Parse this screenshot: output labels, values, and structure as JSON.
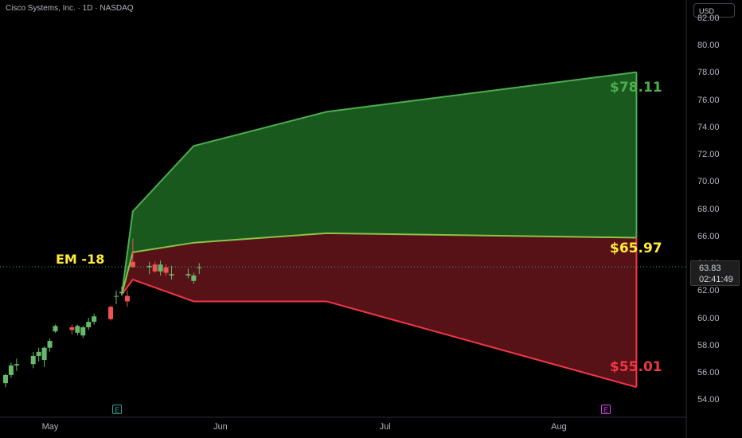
{
  "header": {
    "title": "Cisco Systems, Inc. · 1D · NASDAQ",
    "currency": "USD"
  },
  "price_tag": {
    "price": "63.83",
    "countdown": "02:41:49"
  },
  "labels": {
    "upper": "$78.11",
    "middle": "$65.97",
    "lower": "$55.01",
    "em": "EM -18"
  },
  "earnings_badges": [
    "E",
    "E"
  ],
  "colors": {
    "up": "#4caf50",
    "mid": "#ffeb3b",
    "down": "#f23645",
    "up_fill": "#1b5e20",
    "down_fill": "#5c1318",
    "background": "#000000"
  },
  "chart_data": {
    "type": "candlestick",
    "title": "Cisco Systems, Inc. · 1D · NASDAQ",
    "x_ticks": [
      "May",
      "Jun",
      "Jul",
      "Aug"
    ],
    "y_ticks": [
      "82.00",
      "80.00",
      "78.00",
      "76.00",
      "74.00",
      "72.00",
      "70.00",
      "68.00",
      "66.00",
      "64.00",
      "62.00",
      "60.00",
      "58.00",
      "56.00",
      "54.00"
    ],
    "ylim": [
      52.8,
      83.4
    ],
    "xlim": [
      "2025-04-22",
      "2025-08-24"
    ],
    "current_price": 63.83,
    "candles": [
      {
        "date": "2025-04-23",
        "o": 55.3,
        "h": 56.0,
        "l": 55.0,
        "c": 55.9
      },
      {
        "date": "2025-04-24",
        "o": 55.9,
        "h": 56.8,
        "l": 55.7,
        "c": 56.6
      },
      {
        "date": "2025-04-25",
        "o": 56.6,
        "h": 57.1,
        "l": 56.2,
        "c": 56.7
      },
      {
        "date": "2025-04-28",
        "o": 56.7,
        "h": 57.6,
        "l": 56.4,
        "c": 57.3
      },
      {
        "date": "2025-04-29",
        "o": 57.3,
        "h": 57.9,
        "l": 56.9,
        "c": 57.6
      },
      {
        "date": "2025-04-30",
        "o": 57.0,
        "h": 58.0,
        "l": 56.5,
        "c": 57.9
      },
      {
        "date": "2025-05-01",
        "o": 57.9,
        "h": 58.6,
        "l": 57.6,
        "c": 58.4
      },
      {
        "date": "2025-05-02",
        "o": 59.1,
        "h": 59.6,
        "l": 59.0,
        "c": 59.5
      },
      {
        "date": "2025-05-05",
        "o": 59.4,
        "h": 59.6,
        "l": 58.9,
        "c": 59.2
      },
      {
        "date": "2025-05-06",
        "o": 59.0,
        "h": 59.6,
        "l": 58.8,
        "c": 59.5
      },
      {
        "date": "2025-05-07",
        "o": 58.8,
        "h": 59.5,
        "l": 58.6,
        "c": 59.4
      },
      {
        "date": "2025-05-08",
        "o": 59.4,
        "h": 60.1,
        "l": 59.2,
        "c": 59.8
      },
      {
        "date": "2025-05-09",
        "o": 59.8,
        "h": 60.4,
        "l": 59.6,
        "c": 60.2
      },
      {
        "date": "2025-05-12",
        "o": 60.9,
        "h": 61.0,
        "l": 59.9,
        "c": 60.0
      },
      {
        "date": "2025-05-13",
        "o": 61.7,
        "h": 62.1,
        "l": 61.1,
        "c": 61.7
      },
      {
        "date": "2025-05-14",
        "o": 61.9,
        "h": 62.4,
        "l": 61.7,
        "c": 62.0
      },
      {
        "date": "2025-05-15",
        "o": 61.7,
        "h": 62.1,
        "l": 60.9,
        "c": 61.3
      },
      {
        "date": "2025-05-16",
        "o": 64.2,
        "h": 65.9,
        "l": 63.8,
        "c": 63.8
      },
      {
        "date": "2025-05-19",
        "o": 63.8,
        "h": 64.2,
        "l": 63.3,
        "c": 63.9
      },
      {
        "date": "2025-05-20",
        "o": 64.0,
        "h": 64.2,
        "l": 63.4,
        "c": 63.5
      },
      {
        "date": "2025-05-21",
        "o": 63.5,
        "h": 64.3,
        "l": 63.2,
        "c": 64.0
      },
      {
        "date": "2025-05-22",
        "o": 63.8,
        "h": 64.0,
        "l": 63.2,
        "c": 63.4
      },
      {
        "date": "2025-05-23",
        "o": 63.2,
        "h": 63.9,
        "l": 62.9,
        "c": 63.3
      },
      {
        "date": "2025-05-26",
        "o": 63.2,
        "h": 63.7,
        "l": 63.0,
        "c": 63.3
      },
      {
        "date": "2025-05-27",
        "o": 62.8,
        "h": 63.4,
        "l": 62.6,
        "c": 63.2
      },
      {
        "date": "2025-05-28",
        "o": 63.8,
        "h": 64.1,
        "l": 63.3,
        "c": 63.8
      }
    ],
    "series": [
      {
        "x": [
          "2025-05-14",
          "2025-05-16",
          "2025-05-27",
          "2025-06-20",
          "2025-08-15"
        ],
        "y": [
          61.8,
          67.9,
          72.7,
          75.2,
          78.11
        ]
      },
      {
        "x": [
          "2025-05-14",
          "2025-05-16",
          "2025-05-27",
          "2025-06-20",
          "2025-08-15"
        ],
        "y": [
          61.8,
          64.9,
          65.6,
          66.3,
          65.97
        ]
      },
      {
        "x": [
          "2025-05-14",
          "2025-05-16",
          "2025-05-27",
          "2025-06-20",
          "2025-08-15"
        ],
        "y": [
          61.8,
          62.9,
          61.3,
          61.3,
          55.01
        ]
      }
    ]
  }
}
